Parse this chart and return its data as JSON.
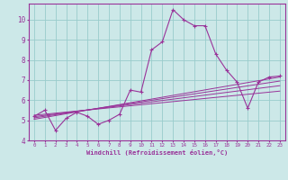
{
  "xlabel": "Windchill (Refroidissement éolien,°C)",
  "ylabel": "",
  "bg_color": "#cce8e8",
  "line_color": "#993399",
  "grid_color": "#99cccc",
  "xlim": [
    -0.5,
    23.5
  ],
  "ylim": [
    4,
    10.8
  ],
  "yticks": [
    4,
    5,
    6,
    7,
    8,
    9,
    10
  ],
  "xticks": [
    0,
    1,
    2,
    3,
    4,
    5,
    6,
    7,
    8,
    9,
    10,
    11,
    12,
    13,
    14,
    15,
    16,
    17,
    18,
    19,
    20,
    21,
    22,
    23
  ],
  "main_x": [
    0,
    1,
    2,
    3,
    4,
    5,
    6,
    7,
    8,
    9,
    10,
    11,
    12,
    13,
    14,
    15,
    16,
    17,
    18,
    19,
    20,
    21,
    22,
    23
  ],
  "main_y": [
    5.2,
    5.5,
    4.5,
    5.1,
    5.4,
    5.2,
    4.8,
    5.0,
    5.3,
    6.5,
    6.4,
    8.5,
    8.9,
    10.5,
    10.0,
    9.7,
    9.7,
    8.3,
    7.5,
    6.9,
    5.6,
    6.9,
    7.15,
    7.2
  ],
  "line1_x": [
    0,
    23
  ],
  "line1_y": [
    5.25,
    6.45
  ],
  "line2_x": [
    0,
    23
  ],
  "line2_y": [
    5.18,
    6.72
  ],
  "line3_x": [
    0,
    23
  ],
  "line3_y": [
    5.12,
    6.95
  ],
  "line4_x": [
    0,
    23
  ],
  "line4_y": [
    5.05,
    7.15
  ]
}
